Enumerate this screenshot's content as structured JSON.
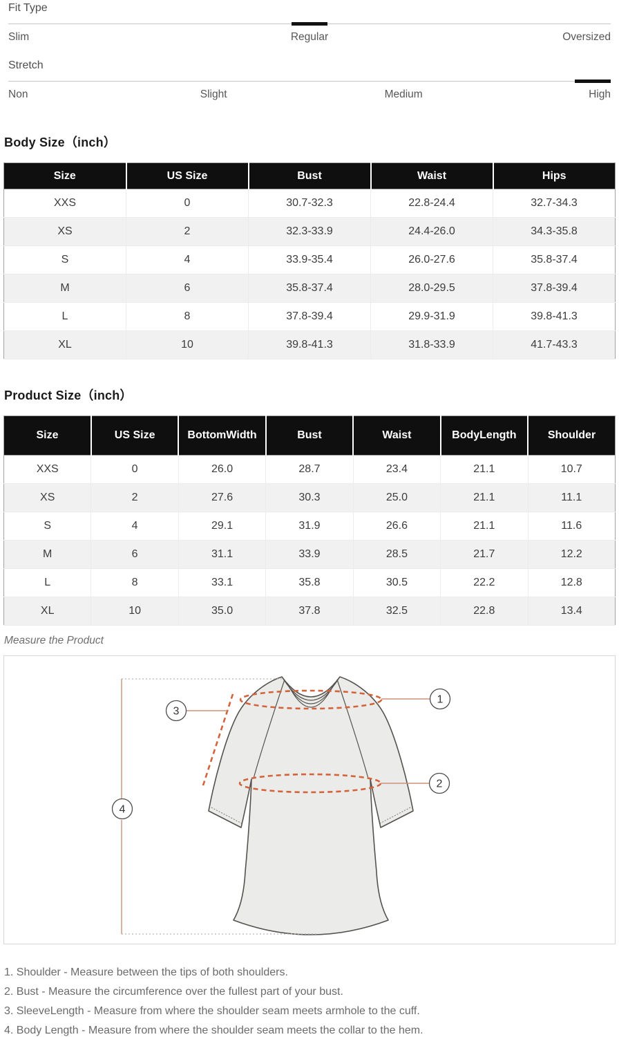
{
  "sliders": {
    "fit_type": {
      "label": "Fit Type",
      "options": [
        "Slim",
        "Regular",
        "Oversized"
      ],
      "selected": "Regular",
      "selected_index": 1
    },
    "stretch": {
      "label": "Stretch",
      "options": [
        "Non",
        "Slight",
        "Medium",
        "High"
      ],
      "selected": "High",
      "selected_index": 3
    }
  },
  "body_size": {
    "title": "Body Size（inch）",
    "columns": [
      "Size",
      "US Size",
      "Bust",
      "Waist",
      "Hips"
    ],
    "rows": [
      [
        "XXS",
        "0",
        "30.7-32.3",
        "22.8-24.4",
        "32.7-34.3"
      ],
      [
        "XS",
        "2",
        "32.3-33.9",
        "24.4-26.0",
        "34.3-35.8"
      ],
      [
        "S",
        "4",
        "33.9-35.4",
        "26.0-27.6",
        "35.8-37.4"
      ],
      [
        "M",
        "6",
        "35.8-37.4",
        "28.0-29.5",
        "37.8-39.4"
      ],
      [
        "L",
        "8",
        "37.8-39.4",
        "29.9-31.9",
        "39.8-41.3"
      ],
      [
        "XL",
        "10",
        "39.8-41.3",
        "31.8-33.9",
        "41.7-43.3"
      ]
    ]
  },
  "product_size": {
    "title": "Product Size（inch）",
    "columns": [
      "Size",
      "US Size",
      "BottomWidth",
      "Bust",
      "Waist",
      "BodyLength",
      "Shoulder"
    ],
    "rows": [
      [
        "XXS",
        "0",
        "26.0",
        "28.7",
        "23.4",
        "21.1",
        "10.7"
      ],
      [
        "XS",
        "2",
        "27.6",
        "30.3",
        "25.0",
        "21.1",
        "11.1"
      ],
      [
        "S",
        "4",
        "29.1",
        "31.9",
        "26.6",
        "21.1",
        "11.6"
      ],
      [
        "M",
        "6",
        "31.1",
        "33.9",
        "28.5",
        "21.7",
        "12.2"
      ],
      [
        "L",
        "8",
        "33.1",
        "35.8",
        "30.5",
        "22.2",
        "12.8"
      ],
      [
        "XL",
        "10",
        "35.0",
        "37.8",
        "32.5",
        "22.8",
        "13.4"
      ]
    ]
  },
  "measure": {
    "caption": "Measure the Product",
    "callouts": [
      "1",
      "2",
      "3",
      "4"
    ],
    "notes": [
      "1. Shoulder - Measure between the tips of both shoulders.",
      "2. Bust - Measure the circumference over the fullest part of your bust.",
      "3. SleeveLength - Measure from where the shoulder seam meets armhole to the cuff.",
      "4. Body Length - Measure from where the shoulder seam meets the collar to the hem."
    ]
  },
  "colors": {
    "dashed_measure_line": "#d2633a",
    "leader_line": "#d0907a",
    "table_header_bg": "#0f0f0f",
    "row_alt_bg": "#f1f1f1",
    "shirt_fill": "#ebebe9",
    "shirt_outline": "#55524e"
  }
}
